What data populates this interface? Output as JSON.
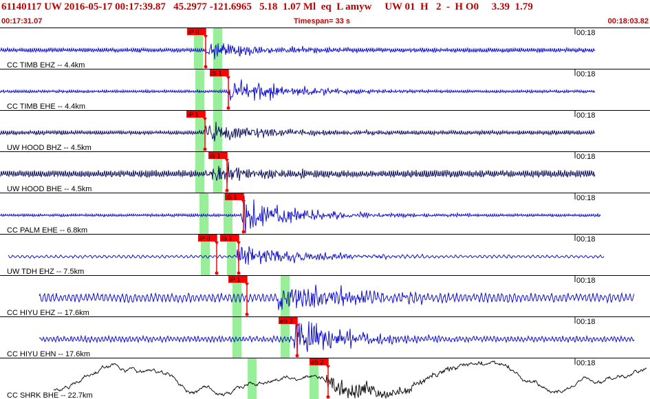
{
  "header": {
    "event_line": "61140117 UW 2016-05-17 00:17:39.87   45.2977 -121.6965   5.18  1.07 Ml  eq  L amyw     UW 01  H   2  -  H O0     3.39  1.79",
    "start_time": "00:17:31.07",
    "timespan_label": "Timespan=  33 s",
    "end_time": "00:18:03.82"
  },
  "colors": {
    "header_text": "#c00000",
    "trace_vertical": "#1010d0",
    "trace_horizontal": "#101060",
    "trace_long_period": "#101010",
    "pick_box": "#ff0000",
    "pick_window": "#99ee99",
    "separator": "#000000"
  },
  "panels": [
    {
      "label": "CC TIMB EHZ -- 4.4km",
      "time_mark": "00:18",
      "picks": [
        {
          "label": "iP 0",
          "x": 272
        }
      ],
      "windows": [
        282,
        310
      ],
      "start": 0,
      "end": 865,
      "onset": 300,
      "amp": 10,
      "noise": 3,
      "color": "#1010d0",
      "period": 3
    },
    {
      "label": "CC TIMB EHE -- 4.4km",
      "time_mark": "00:18",
      "picks": [
        {
          "label": "iS 1",
          "x": 305
        }
      ],
      "windows": [
        284,
        310
      ],
      "start": 0,
      "end": 865,
      "onset": 333,
      "amp": 17,
      "noise": 2,
      "color": "#1010d0",
      "period": 3
    },
    {
      "label": "UW HOOD BHZ -- 4.5km",
      "time_mark": "00:18",
      "picks": [
        {
          "label": "iP 1",
          "x": 271
        }
      ],
      "windows": [
        284,
        310
      ],
      "start": 0,
      "end": 865,
      "onset": 297,
      "amp": 14,
      "noise": 3,
      "color": "#101060",
      "period": 3
    },
    {
      "label": "UW HOOD BHE -- 4.5km",
      "time_mark": "00:18",
      "picks": [
        {
          "label": "iS 1",
          "x": 303
        }
      ],
      "windows": [
        284,
        310
      ],
      "start": 0,
      "end": 865,
      "onset": 300,
      "amp": 12,
      "noise": 5,
      "color": "#101060",
      "period": 3
    },
    {
      "label": "CC PALM EHE -- 6.8km",
      "time_mark": "00:18",
      "picks": [
        {
          "label": "iS 1",
          "x": 327
        }
      ],
      "windows": [
        290,
        325
      ],
      "start": 0,
      "end": 873,
      "onset": 352,
      "amp": 22,
      "noise": 2,
      "color": "#1010d0",
      "period": 3
    },
    {
      "label": "UW TDH EHZ -- 7.5km",
      "time_mark": "00:18",
      "picks": [
        {
          "label": "iP 0",
          "x": 288
        },
        {
          "label": "iS 1",
          "x": 320
        }
      ],
      "windows": [
        292,
        330
      ],
      "start": 12,
      "end": 878,
      "onset": 345,
      "amp": 16,
      "noise": 2,
      "color": "#1010d0",
      "period": 7
    },
    {
      "label": "CC HIYU EHZ -- 17.6km",
      "time_mark": "00:18",
      "picks": [
        {
          "label": "iP 1",
          "x": 332
        }
      ],
      "windows": [
        338,
        408
      ],
      "start": 57,
      "end": 922,
      "onset": 405,
      "amp": 24,
      "noise": 6,
      "color": "#1010d0",
      "period": 6
    },
    {
      "label": "CC HIYU EHN -- 17.6km",
      "time_mark": "00:18",
      "picks": [
        {
          "label": "eS 2",
          "x": 405
        }
      ],
      "windows": [
        338,
        408
      ],
      "start": 57,
      "end": 922,
      "onset": 428,
      "amp": 22,
      "noise": 4,
      "color": "#1010d0",
      "period": 5
    },
    {
      "label": "CC SHRK BHE -- 22.7km",
      "time_mark": "00:18",
      "picks": [
        {
          "label": "eS 2",
          "x": 450
        }
      ],
      "windows": [
        360,
        450
      ],
      "start": 78,
      "end": 940,
      "onset": 475,
      "amp": 18,
      "noise": 20,
      "color": "#101010",
      "period": 80
    }
  ]
}
